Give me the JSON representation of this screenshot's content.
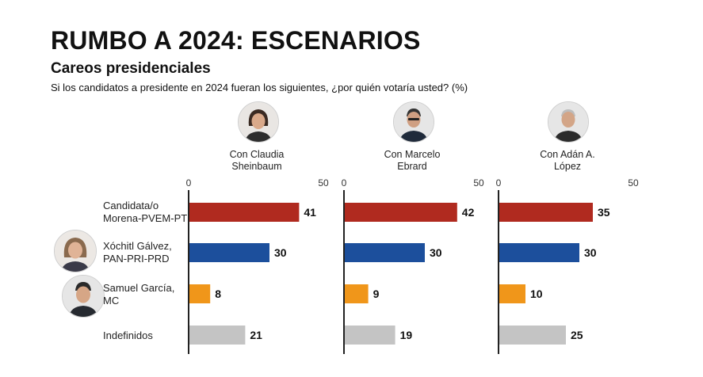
{
  "header": {
    "title": "RUMBO A 2024: ESCENARIOS",
    "subtitle": "Careos presidenciales",
    "question": "Si los candidatos a presidente en 2024 fueran los siguientes, ¿por quién votaría usted? (%)"
  },
  "scenarios": [
    {
      "line1": "Con Claudia",
      "line2": "Sheinbaum",
      "avatar_icon": "woman-portrait-icon"
    },
    {
      "line1": "Con Marcelo",
      "line2": "Ebrard",
      "avatar_icon": "man-portrait-icon"
    },
    {
      "line1": "Con Adán A.",
      "line2": "López",
      "avatar_icon": "man-portrait-icon"
    }
  ],
  "rows": [
    {
      "line1": "Candidata/o",
      "line2": "Morena-PVEM-PT",
      "avatar_icon": ""
    },
    {
      "line1": "Xóchitl Gálvez,",
      "line2": "PAN-PRI-PRD",
      "avatar_icon": "woman-portrait-icon"
    },
    {
      "line1": "Samuel García,",
      "line2": "MC",
      "avatar_icon": "man-portrait-icon"
    },
    {
      "line1": "Indefinidos",
      "line2": "",
      "avatar_icon": ""
    }
  ],
  "colors": {
    "morena": "#b02a1f",
    "pan_pri_prd": "#1c4f9c",
    "mc": "#f0961a",
    "indefinidos": "#c4c4c4",
    "axis": "#222222"
  },
  "chart_data": {
    "type": "bar",
    "orientation": "horizontal",
    "title": "RUMBO A 2024: ESCENARIOS",
    "subtitle": "Careos presidenciales",
    "categories": [
      "Candidata/o Morena-PVEM-PT",
      "Xóchitl Gálvez, PAN-PRI-PRD",
      "Samuel García, MC",
      "Indefinidos"
    ],
    "xlim": [
      0,
      50
    ],
    "ticks": [
      "0",
      "50"
    ],
    "grid": false,
    "series": [
      {
        "name": "Con Claudia Sheinbaum",
        "values": [
          41,
          30,
          8,
          21
        ]
      },
      {
        "name": "Con Marcelo Ebrard",
        "values": [
          42,
          30,
          9,
          19
        ]
      },
      {
        "name": "Con Adán A. López",
        "values": [
          35,
          30,
          10,
          25
        ]
      }
    ]
  }
}
